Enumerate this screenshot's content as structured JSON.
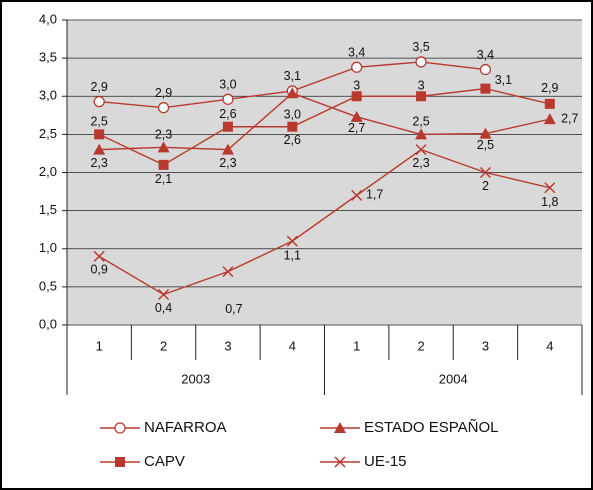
{
  "chart_data": {
    "type": "line",
    "categories": [
      "1",
      "2",
      "3",
      "4",
      "1",
      "2",
      "3",
      "4"
    ],
    "x_groups": [
      "2003",
      "2004"
    ],
    "ylim": [
      0,
      4
    ],
    "yticks": [
      {
        "value": 0,
        "label": "0,0"
      },
      {
        "value": 0.5,
        "label": "0,5"
      },
      {
        "value": 1,
        "label": "1,0"
      },
      {
        "value": 1.5,
        "label": "1,5"
      },
      {
        "value": 2,
        "label": "2,0"
      },
      {
        "value": 2.5,
        "label": "2,5"
      },
      {
        "value": 3,
        "label": "3,0"
      },
      {
        "value": 3.5,
        "label": "3,5"
      },
      {
        "value": 4,
        "label": "4,0"
      }
    ],
    "grid": true,
    "series": [
      {
        "name": "NAFARROA",
        "color": "#b83a2e",
        "marker": "circle",
        "values": [
          2.93,
          2.85,
          2.96,
          3.07,
          3.38,
          3.45,
          3.35,
          null
        ],
        "value_labels": [
          "2,9",
          "2,9",
          "3,0",
          "3,1",
          "3,4",
          "3,5",
          "3,4",
          null
        ]
      },
      {
        "name": "ESTADO ESPAÑOL",
        "color": "#b83a2e",
        "marker": "triangle",
        "values": [
          2.3,
          2.33,
          2.3,
          3.04,
          2.73,
          2.5,
          2.51,
          2.7
        ],
        "value_labels": [
          "2,3",
          "2,3",
          "2,3",
          "3,0",
          "2,7",
          "2,5",
          "2,5",
          "2,7"
        ]
      },
      {
        "name": "CAPV",
        "color": "#b83a2e",
        "marker": "square",
        "values": [
          2.5,
          2.1,
          2.6,
          2.6,
          3.0,
          3.0,
          3.1,
          2.9
        ],
        "value_labels": [
          "2,5",
          "2,1",
          "2,6",
          "2,6",
          "3",
          "3",
          "3,1",
          "2,9"
        ]
      },
      {
        "name": "UE-15",
        "color": "#b83a2e",
        "marker": "x",
        "values": [
          0.9,
          0.4,
          0.7,
          1.1,
          1.7,
          2.3,
          2.0,
          1.8
        ],
        "value_labels": [
          "0,9",
          "0,4",
          "0,7",
          "1,1",
          "1,7",
          "2,3",
          "2",
          "1,8"
        ]
      }
    ]
  }
}
